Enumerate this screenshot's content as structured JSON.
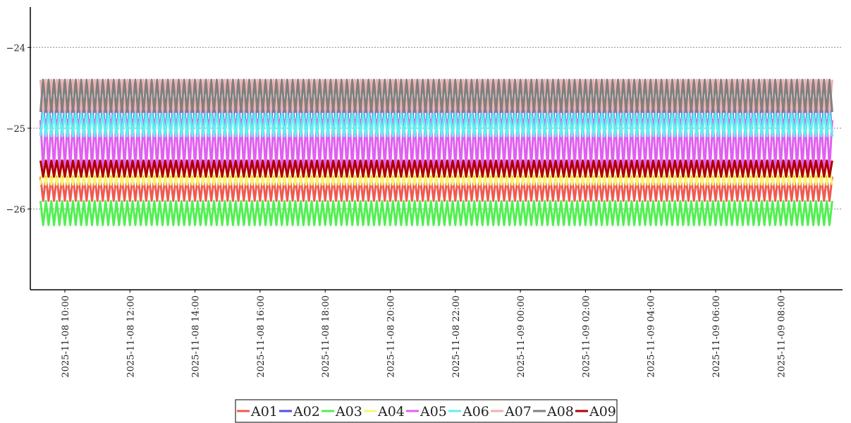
{
  "chart_data": {
    "type": "line",
    "title": "",
    "xlabel": "",
    "ylabel": "",
    "x_range": [
      "2025-11-08 09:10",
      "2025-11-09 09:45"
    ],
    "ylim": [
      -27.0,
      -23.5
    ],
    "yticks": [
      -24,
      -25,
      -26
    ],
    "ytick_labels": [
      "−24",
      "−25",
      "−26"
    ],
    "xticks": [
      "2025-11-08 10:00",
      "2025-11-08 12:00",
      "2025-11-08 14:00",
      "2025-11-08 16:00",
      "2025-11-08 18:00",
      "2025-11-08 20:00",
      "2025-11-08 22:00",
      "2025-11-09 00:00",
      "2025-11-09 02:00",
      "2025-11-09 04:00",
      "2025-11-09 06:00",
      "2025-11-09 08:00"
    ],
    "xtick_labels": [
      "2025-11-08 10:00",
      "2025-11-08 12:00",
      "2025-11-08 14:00",
      "2025-11-08 16:00",
      "2025-11-08 18:00",
      "2025-11-08 20:00",
      "2025-11-08 22:00",
      "2025-11-09 00:00",
      "2025-11-09 02:00",
      "2025-11-09 04:00",
      "2025-11-09 06:00",
      "2025-11-09 08:00"
    ],
    "grid": "horizontal dotted",
    "legend_position": "bottom-center",
    "sample_interval_minutes": 5,
    "series": [
      {
        "name": "A01",
        "color": "#f05a50",
        "values": [
          -25.6,
          -25.9,
          -25.6,
          -25.9
        ]
      },
      {
        "name": "A02",
        "color": "#5050e0",
        "values": [
          -24.7,
          -25.1,
          -24.7,
          -25.1
        ]
      },
      {
        "name": "A03",
        "color": "#50f050",
        "values": [
          -25.9,
          -26.2,
          -25.9,
          -26.2
        ]
      },
      {
        "name": "A04",
        "color": "#f8f870",
        "values": [
          -25.5,
          -25.7,
          -25.5,
          -25.7
        ]
      },
      {
        "name": "A05",
        "color": "#e060f0",
        "values": [
          -24.9,
          -25.5,
          -24.9,
          -25.5
        ]
      },
      {
        "name": "A06",
        "color": "#60f0f0",
        "values": [
          -24.8,
          -25.1,
          -24.8,
          -25.1
        ]
      },
      {
        "name": "A07",
        "color": "#f0b0b0",
        "values": [
          -24.4,
          -24.8,
          -24.4,
          -24.8
        ]
      },
      {
        "name": "A08",
        "color": "#808080",
        "values": [
          -24.4,
          -24.8,
          -24.4,
          -24.8
        ]
      },
      {
        "name": "A09",
        "color": "#b00000",
        "values": [
          -25.4,
          -25.6,
          -25.4,
          -25.6
        ]
      }
    ]
  }
}
